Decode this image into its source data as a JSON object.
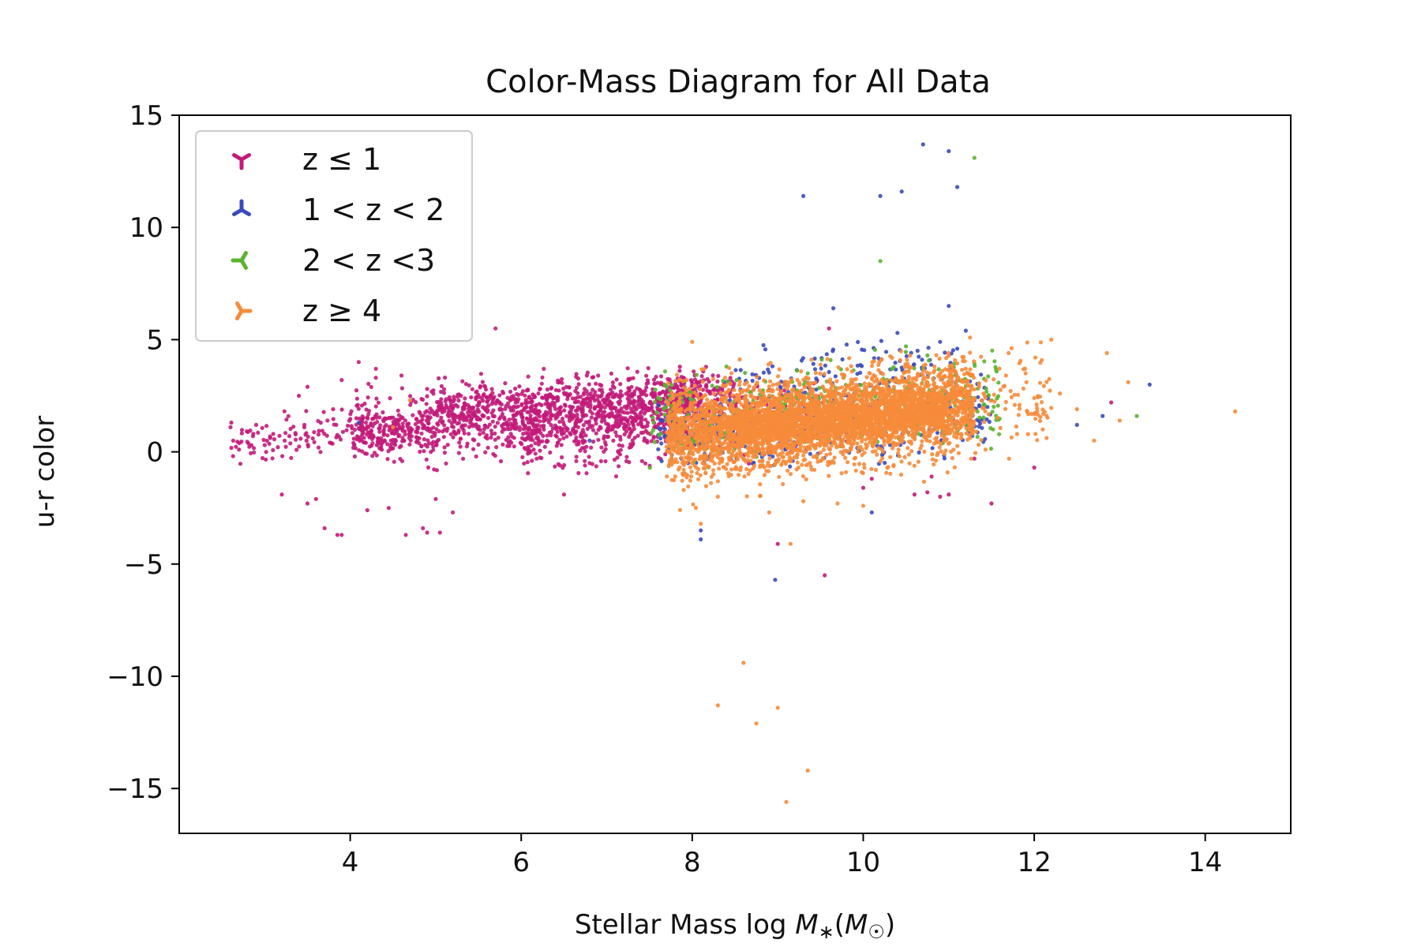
{
  "chart_data": {
    "type": "scatter",
    "title": "Color-Mass Diagram for All Data",
    "xlabel": "Stellar Mass log M∗(M☉)",
    "xlabel_parts": {
      "prefix": "Stellar Mass log ",
      "var": "M",
      "sub": "∗",
      "paren_open": "(",
      "var2": "M",
      "sub2": "☉",
      "paren_close": ")"
    },
    "ylabel": "u-r color",
    "xlim": [
      2,
      15
    ],
    "ylim": [
      -17,
      15
    ],
    "xticks": [
      4,
      6,
      8,
      10,
      12,
      14
    ],
    "yticks": [
      15,
      10,
      5,
      0,
      -5,
      -10,
      -15
    ],
    "ytick_labels": [
      "15",
      "10",
      "5",
      "0",
      "−5",
      "−10",
      "−15"
    ],
    "grid": false,
    "legend_position": "top-left",
    "series": [
      {
        "name": "z ≤ 1",
        "color": "#c21b7a",
        "marker": "tri-down",
        "bulk": [
          {
            "x": [
              2.6,
              5.0
            ],
            "y": [
              -0.3,
              1.8
            ],
            "n": 160
          },
          {
            "x": [
              4.0,
              8.2
            ],
            "y": [
              -0.2,
              3.2
            ],
            "n": 1100
          },
          {
            "x": [
              5.0,
              8.5
            ],
            "y": [
              1.5,
              3.3
            ],
            "n": 350
          },
          {
            "x": [
              6.0,
              9.5
            ],
            "y": [
              -0.6,
              2.8
            ],
            "n": 450
          }
        ],
        "outliers": [
          [
            2.6,
            1.1
          ],
          [
            2.7,
            0.1
          ],
          [
            2.9,
            1.2
          ],
          [
            3.0,
            0.3
          ],
          [
            3.1,
            0.8
          ],
          [
            3.2,
            -1.9
          ],
          [
            3.4,
            2.5
          ],
          [
            3.5,
            -2.3
          ],
          [
            3.5,
            2.9
          ],
          [
            3.6,
            -2.1
          ],
          [
            3.7,
            -3.4
          ],
          [
            3.8,
            1.9
          ],
          [
            3.85,
            -3.7
          ],
          [
            3.9,
            3.2
          ],
          [
            3.9,
            -3.7
          ],
          [
            4.1,
            4.0
          ],
          [
            4.2,
            -2.6
          ],
          [
            4.3,
            3.3
          ],
          [
            4.3,
            3.7
          ],
          [
            4.45,
            -2.5
          ],
          [
            4.6,
            3.4
          ],
          [
            4.65,
            -3.7
          ],
          [
            4.85,
            -3.4
          ],
          [
            4.9,
            -3.6
          ],
          [
            4.9,
            2.8
          ],
          [
            5.0,
            -2.1
          ],
          [
            5.05,
            -3.6
          ],
          [
            5.2,
            -2.7
          ],
          [
            5.7,
            5.5
          ],
          [
            6.5,
            -1.9
          ],
          [
            6.8,
            -0.5
          ],
          [
            6.9,
            3.4
          ],
          [
            9.0,
            -4.1
          ],
          [
            9.55,
            -5.5
          ],
          [
            9.6,
            5.5
          ],
          [
            10.0,
            -1.6
          ],
          [
            10.1,
            -1.2
          ],
          [
            10.6,
            -1.9
          ],
          [
            10.75,
            -1.8
          ],
          [
            10.8,
            -1.1
          ],
          [
            10.9,
            -2.0
          ],
          [
            11.0,
            -1.9
          ],
          [
            11.3,
            -0.3
          ],
          [
            11.5,
            -2.3
          ],
          [
            12.0,
            -0.7
          ],
          [
            12.9,
            2.2
          ]
        ]
      },
      {
        "name": "1 < z < 2",
        "color": "#3a4bbd",
        "marker": "tri-up",
        "bulk": [
          {
            "x": [
              7.6,
              11.5
            ],
            "y": [
              -0.6,
              3.2
            ],
            "n": 420
          },
          {
            "x": [
              8.5,
              11.2
            ],
            "y": [
              2.6,
              4.8
            ],
            "n": 100
          }
        ],
        "outliers": [
          [
            4.1,
            1.3
          ],
          [
            6.8,
            0.5
          ],
          [
            8.1,
            -3.5
          ],
          [
            8.1,
            -3.9
          ],
          [
            8.97,
            -5.7
          ],
          [
            9.3,
            11.4
          ],
          [
            9.65,
            6.4
          ],
          [
            10.2,
            11.4
          ],
          [
            10.1,
            -2.7
          ],
          [
            10.1,
            2.0
          ],
          [
            10.45,
            11.6
          ],
          [
            10.7,
            13.7
          ],
          [
            11.0,
            13.4
          ],
          [
            11.1,
            11.8
          ],
          [
            11.0,
            6.5
          ],
          [
            11.2,
            5.4
          ],
          [
            10.4,
            5.3
          ],
          [
            11.1,
            4.6
          ],
          [
            11.3,
            2.3
          ],
          [
            12.5,
            1.2
          ],
          [
            12.8,
            1.6
          ],
          [
            13.35,
            3.0
          ],
          [
            10.9,
            4.9
          ]
        ]
      },
      {
        "name": "2 < z <3",
        "color": "#5ab42d",
        "marker": "tri-left",
        "bulk": [
          {
            "x": [
              7.5,
              11.6
            ],
            "y": [
              0.0,
              3.8
            ],
            "n": 420
          }
        ],
        "outliers": [
          [
            10.2,
            8.5
          ],
          [
            11.3,
            13.1
          ],
          [
            13.2,
            1.6
          ],
          [
            11.5,
            2.3
          ],
          [
            10.5,
            4.7
          ],
          [
            7.6,
            2.4
          ],
          [
            7.7,
            1.4
          ],
          [
            8.4,
            3.8
          ]
        ]
      },
      {
        "name": "z ≥ 4",
        "color": "#f68b3a",
        "marker": "tri-right",
        "bulk": [
          {
            "x": [
              7.7,
              11.3
            ],
            "y": [
              -0.6,
              3.6
            ],
            "n": 2800
          },
          {
            "x": [
              8.5,
              11.0
            ],
            "y": [
              0.3,
              2.5
            ],
            "n": 1300
          },
          {
            "x": [
              7.8,
              12.2
            ],
            "y": [
              -1.5,
              4.2
            ],
            "n": 450
          }
        ],
        "outliers": [
          [
            4.5,
            1.1
          ],
          [
            4.7,
            2.3
          ],
          [
            8.0,
            4.9
          ],
          [
            8.1,
            -3.2
          ],
          [
            8.3,
            -11.3
          ],
          [
            8.6,
            -9.4
          ],
          [
            8.75,
            -12.1
          ],
          [
            9.0,
            -11.4
          ],
          [
            9.15,
            -4.1
          ],
          [
            9.35,
            -14.2
          ],
          [
            9.1,
            -15.6
          ],
          [
            12.1,
            1.0
          ],
          [
            12.2,
            5.0
          ],
          [
            12.5,
            1.9
          ],
          [
            12.7,
            0.5
          ],
          [
            13.0,
            1.4
          ],
          [
            13.1,
            3.1
          ],
          [
            14.35,
            1.8
          ],
          [
            12.3,
            2.6
          ],
          [
            11.9,
            3.5
          ],
          [
            11.7,
            4.4
          ],
          [
            12.0,
            2.4
          ],
          [
            9.7,
            -2.3
          ],
          [
            8.9,
            -2.7
          ],
          [
            9.3,
            -2.2
          ],
          [
            10.0,
            -2.4
          ],
          [
            8.3,
            -2.0
          ],
          [
            7.9,
            -1.7
          ],
          [
            12.85,
            4.4
          ]
        ]
      }
    ]
  }
}
